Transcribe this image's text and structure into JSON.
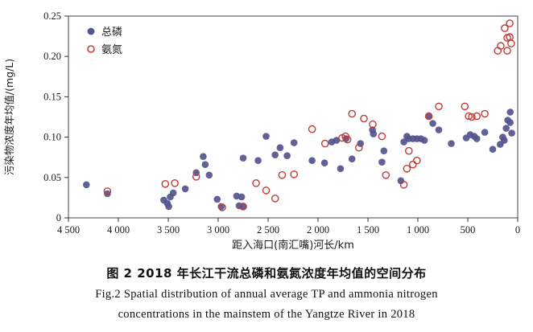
{
  "chart_data": {
    "type": "scatter",
    "title": "",
    "xlabel": "距入海口(南汇嘴)河长/km",
    "ylabel": "污染物浓度年均值/(mg/L)",
    "x_axis": {
      "min": 0,
      "max": 4500,
      "reversed": true,
      "ticks": [
        4500,
        4000,
        3500,
        3000,
        2500,
        2000,
        1500,
        1000,
        500,
        0
      ],
      "tick_labels": [
        "4 500",
        "4 000",
        "3 500",
        "3 000",
        "2 500",
        "2 000",
        "1 500",
        "1 000",
        "500",
        "0"
      ]
    },
    "y_axis": {
      "min": 0,
      "max": 0.25,
      "ticks": [
        0,
        0.05,
        0.1,
        0.15,
        0.2,
        0.25
      ],
      "tick_labels": [
        "0",
        "0.05",
        "0.10",
        "0.15",
        "0.20",
        "0.25"
      ]
    },
    "grid": false,
    "legend_position": "top-left-inside",
    "series": [
      {
        "name": "总磷",
        "marker": "filled-circle",
        "color": "#54548e",
        "points": [
          [
            4320,
            0.041
          ],
          [
            4110,
            0.03
          ],
          [
            3545,
            0.022
          ],
          [
            3510,
            0.018
          ],
          [
            3495,
            0.014
          ],
          [
            3480,
            0.026
          ],
          [
            3450,
            0.031
          ],
          [
            3330,
            0.036
          ],
          [
            3220,
            0.056
          ],
          [
            3150,
            0.076
          ],
          [
            3130,
            0.066
          ],
          [
            3090,
            0.053
          ],
          [
            3010,
            0.023
          ],
          [
            2970,
            0.014
          ],
          [
            2815,
            0.027
          ],
          [
            2765,
            0.026
          ],
          [
            2790,
            0.015
          ],
          [
            2750,
            0.014
          ],
          [
            2750,
            0.074
          ],
          [
            2600,
            0.071
          ],
          [
            2520,
            0.101
          ],
          [
            2430,
            0.078
          ],
          [
            2380,
            0.087
          ],
          [
            2310,
            0.077
          ],
          [
            2240,
            0.093
          ],
          [
            2060,
            0.071
          ],
          [
            1935,
            0.068
          ],
          [
            1863,
            0.094
          ],
          [
            1815,
            0.096
          ],
          [
            1775,
            0.061
          ],
          [
            1720,
            0.098
          ],
          [
            1660,
            0.073
          ],
          [
            1575,
            0.092
          ],
          [
            1455,
            0.109
          ],
          [
            1445,
            0.104
          ],
          [
            1360,
            0.069
          ],
          [
            1340,
            0.083
          ],
          [
            1170,
            0.046
          ],
          [
            1140,
            0.094
          ],
          [
            1110,
            0.101
          ],
          [
            1090,
            0.098
          ],
          [
            1050,
            0.098
          ],
          [
            1010,
            0.098
          ],
          [
            970,
            0.098
          ],
          [
            935,
            0.096
          ],
          [
            890,
            0.126
          ],
          [
            850,
            0.117
          ],
          [
            790,
            0.109
          ],
          [
            665,
            0.092
          ],
          [
            515,
            0.099
          ],
          [
            475,
            0.103
          ],
          [
            435,
            0.101
          ],
          [
            410,
            0.098
          ],
          [
            330,
            0.106
          ],
          [
            250,
            0.085
          ],
          [
            175,
            0.091
          ],
          [
            150,
            0.1
          ],
          [
            135,
            0.096
          ],
          [
            115,
            0.111
          ],
          [
            100,
            0.121
          ],
          [
            75,
            0.131
          ],
          [
            75,
            0.118
          ],
          [
            60,
            0.105
          ]
        ]
      },
      {
        "name": "氨氮",
        "marker": "open-circle",
        "color": "#c23b36",
        "points": [
          [
            4110,
            0.033
          ],
          [
            3530,
            0.042
          ],
          [
            3435,
            0.043
          ],
          [
            3220,
            0.051
          ],
          [
            2960,
            0.013
          ],
          [
            2750,
            0.014
          ],
          [
            2620,
            0.043
          ],
          [
            2520,
            0.034
          ],
          [
            2430,
            0.024
          ],
          [
            2360,
            0.053
          ],
          [
            2240,
            0.054
          ],
          [
            2060,
            0.11
          ],
          [
            1930,
            0.092
          ],
          [
            1758,
            0.099
          ],
          [
            1725,
            0.101
          ],
          [
            1705,
            0.097
          ],
          [
            1660,
            0.129
          ],
          [
            1590,
            0.087
          ],
          [
            1540,
            0.123
          ],
          [
            1452,
            0.116
          ],
          [
            1360,
            0.101
          ],
          [
            1320,
            0.053
          ],
          [
            1140,
            0.041
          ],
          [
            1110,
            0.061
          ],
          [
            1090,
            0.083
          ],
          [
            1050,
            0.066
          ],
          [
            1010,
            0.071
          ],
          [
            890,
            0.126
          ],
          [
            790,
            0.138
          ],
          [
            530,
            0.138
          ],
          [
            490,
            0.126
          ],
          [
            460,
            0.125
          ],
          [
            410,
            0.126
          ],
          [
            330,
            0.129
          ],
          [
            200,
            0.207
          ],
          [
            170,
            0.213
          ],
          [
            130,
            0.235
          ],
          [
            105,
            0.223
          ],
          [
            105,
            0.207
          ],
          [
            80,
            0.241
          ],
          [
            80,
            0.224
          ],
          [
            65,
            0.216
          ]
        ]
      }
    ]
  },
  "legend": {
    "tp_label": "总磷",
    "nh3_label": "氨氮"
  },
  "captions": {
    "chinese": "图 2  2018 年长江干流总磷和氨氮浓度年均值的空间分布",
    "english_line1": "Fig.2 Spatial distribution of annual average TP and ammonia nitrogen",
    "english_line2": "concentrations in the mainstem of the Yangtze River in 2018"
  },
  "colors": {
    "tp": "#54548e",
    "nh3": "#c23b36",
    "frame": "#6e6e6e",
    "text": "#1a1a1a"
  }
}
